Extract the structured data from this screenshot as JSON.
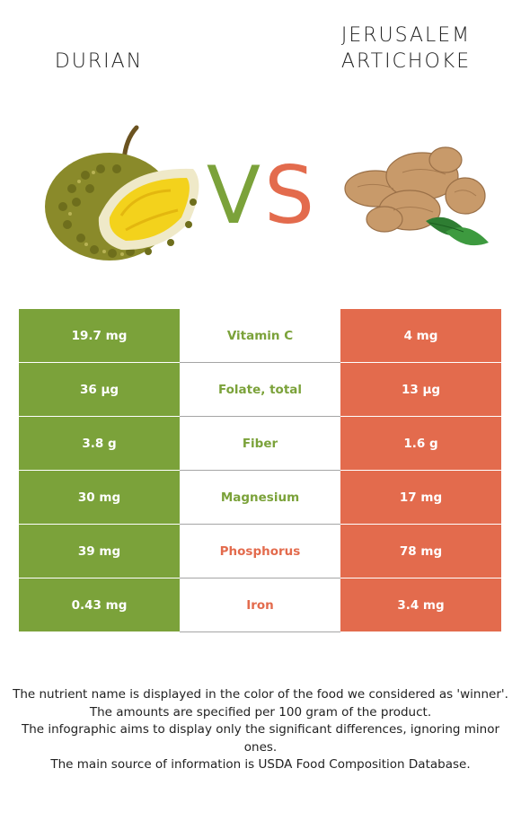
{
  "left_food": {
    "name": "DURIAN",
    "image": "durian-fruit"
  },
  "right_food": {
    "name_lines": [
      "JERUSALEM",
      "ARTICHOKE"
    ],
    "image": "jerusalem-artichoke-tubers"
  },
  "vs": {
    "left": "V",
    "right": "S"
  },
  "colors": {
    "left": "#7ba23a",
    "right": "#e36b4d",
    "neutral": "#ffffff"
  },
  "nutrients": [
    {
      "name": "Vitamin C",
      "left": "19.7 mg",
      "right": "4 mg",
      "winner": "left"
    },
    {
      "name": "Folate, total",
      "left": "36 µg",
      "right": "13 µg",
      "winner": "left"
    },
    {
      "name": "Fiber",
      "left": "3.8 g",
      "right": "1.6 g",
      "winner": "left"
    },
    {
      "name": "Magnesium",
      "left": "30 mg",
      "right": "17 mg",
      "winner": "left"
    },
    {
      "name": "Phosphorus",
      "left": "39 mg",
      "right": "78 mg",
      "winner": "right"
    },
    {
      "name": "Iron",
      "left": "0.43 mg",
      "right": "3.4 mg",
      "winner": "right"
    }
  ],
  "footer": [
    "The nutrient name is displayed in the color of the food we considered as 'winner'.",
    "The amounts are specified per 100 gram of the product.",
    "The infographic aims to display only the significant differences, ignoring minor ones.",
    "The main source of information is USDA Food Composition Database."
  ]
}
